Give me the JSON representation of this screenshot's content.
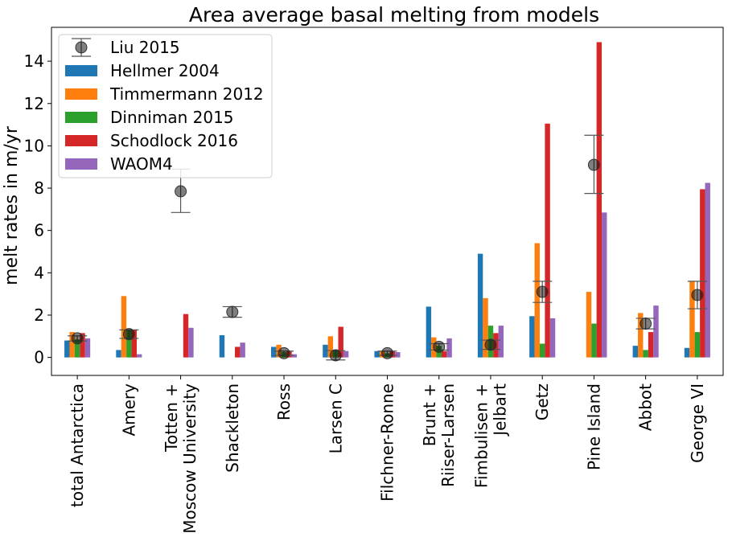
{
  "chart_data": {
    "type": "bar",
    "title": "Area average basal melting from models",
    "xlabel": "",
    "ylabel": "melt rates in m/yr",
    "ylim": [
      -0.85,
      15.6
    ],
    "yticks": [
      0,
      2,
      4,
      6,
      8,
      10,
      12,
      14
    ],
    "grid": false,
    "legend_position": "top-left",
    "categories": [
      [
        "total Antarctica"
      ],
      [
        "Amery"
      ],
      [
        "Totten +",
        "Moscow University"
      ],
      [
        "Shackleton"
      ],
      [
        "Ross"
      ],
      [
        "Larsen C"
      ],
      [
        "Filchner-Ronne"
      ],
      [
        "Brunt +",
        "Riiser-Larsen"
      ],
      [
        "Fimbulisen +",
        "Jelbart"
      ],
      [
        "Getz"
      ],
      [
        "Pine Island"
      ],
      [
        "Abbot"
      ],
      [
        "George VI"
      ]
    ],
    "series": [
      {
        "name": "Hellmer 2004",
        "color": "#1f77b4",
        "values": [
          0.8,
          0.35,
          null,
          1.05,
          0.5,
          0.6,
          0.3,
          2.4,
          4.9,
          1.95,
          null,
          0.55,
          0.45
        ]
      },
      {
        "name": "Timmermann 2012",
        "color": "#ff7f0e",
        "values": [
          1.2,
          2.9,
          null,
          null,
          0.6,
          1.0,
          0.3,
          0.95,
          2.8,
          5.4,
          3.1,
          2.1,
          3.6
        ]
      },
      {
        "name": "Dinniman 2015",
        "color": "#2ca02c",
        "values": [
          0.85,
          1.3,
          null,
          null,
          0.25,
          0.3,
          0.2,
          0.55,
          1.5,
          0.65,
          1.6,
          0.35,
          1.2
        ]
      },
      {
        "name": "Schodlock 2016",
        "color": "#d62728",
        "values": [
          1.15,
          1.3,
          2.05,
          0.5,
          0.3,
          1.45,
          0.3,
          0.3,
          1.15,
          11.05,
          14.9,
          1.2,
          7.95
        ]
      },
      {
        "name": "WAOM4",
        "color": "#9467bd",
        "values": [
          0.9,
          0.15,
          1.4,
          0.7,
          0.15,
          0.3,
          0.25,
          0.9,
          1.5,
          1.85,
          6.85,
          2.45,
          8.25
        ]
      }
    ],
    "observations": {
      "name": "Liu 2015",
      "color": "#555555",
      "values": [
        0.9,
        1.1,
        7.85,
        2.15,
        0.2,
        0.1,
        0.2,
        0.5,
        0.6,
        3.1,
        9.1,
        1.6,
        2.95
      ],
      "err_low": [
        0.78,
        0.9,
        6.85,
        1.9,
        0.1,
        -0.12,
        0.1,
        0.35,
        0.38,
        2.6,
        7.75,
        1.35,
        2.3
      ],
      "err_high": [
        1.02,
        1.3,
        8.9,
        2.4,
        0.3,
        0.32,
        0.3,
        0.65,
        0.82,
        3.6,
        10.5,
        1.85,
        3.6
      ]
    }
  }
}
